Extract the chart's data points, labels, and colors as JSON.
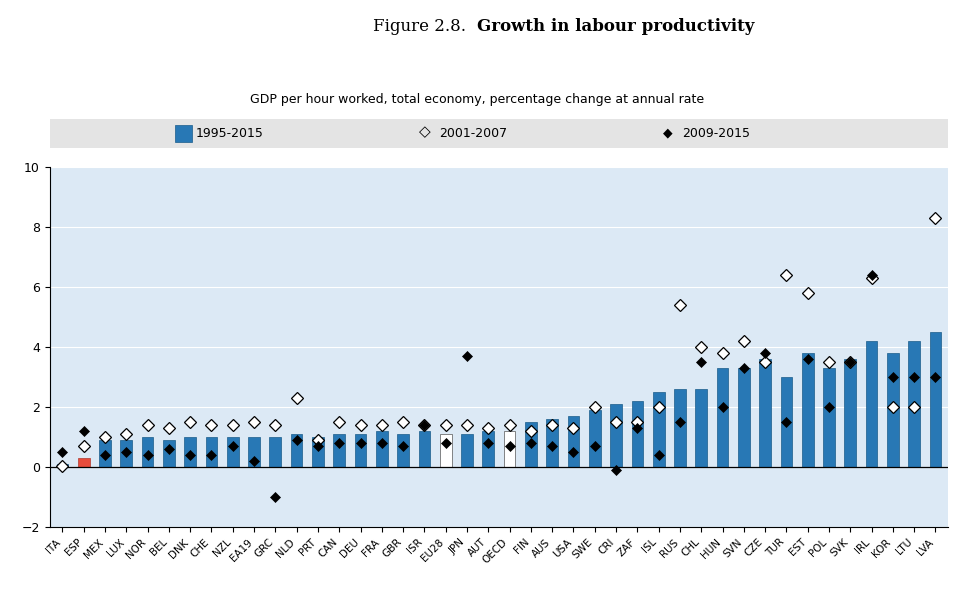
{
  "categories": [
    "ITA",
    "ESP",
    "MEX",
    "LUX",
    "NOR",
    "BEL",
    "DNK",
    "CHE",
    "NZL",
    "EA19",
    "GRC",
    "NLD",
    "PRT",
    "CAN",
    "DEU",
    "FRA",
    "GBR",
    "ISR",
    "EU28",
    "JPN",
    "AUT",
    "OECD",
    "FIN",
    "AUS",
    "USA",
    "SWE",
    "CRI",
    "ZAF",
    "ISL",
    "RUS",
    "CHL",
    "HUN",
    "SVN",
    "CZE",
    "TUR",
    "EST",
    "POL",
    "SVK",
    "IRL",
    "KOR",
    "LTU",
    "LVA"
  ],
  "bars_1995_2015": [
    0.1,
    0.3,
    0.9,
    0.9,
    1.0,
    0.9,
    1.0,
    1.0,
    1.0,
    1.0,
    1.0,
    1.1,
    1.0,
    1.1,
    1.1,
    1.2,
    1.1,
    1.2,
    1.1,
    1.1,
    1.2,
    1.2,
    1.5,
    1.6,
    1.7,
    1.9,
    2.1,
    2.2,
    2.5,
    2.6,
    2.6,
    3.3,
    3.3,
    3.6,
    3.0,
    3.8,
    3.3,
    3.6,
    4.2,
    3.8,
    4.2,
    4.5
  ],
  "diamonds_2001_2007": [
    0.05,
    0.7,
    1.0,
    1.1,
    1.4,
    1.3,
    1.5,
    1.4,
    1.4,
    1.5,
    1.4,
    2.3,
    0.9,
    1.5,
    1.4,
    1.4,
    1.5,
    1.4,
    1.4,
    1.4,
    1.3,
    1.4,
    1.2,
    1.4,
    1.3,
    2.0,
    1.5,
    1.5,
    2.0,
    5.4,
    4.0,
    3.8,
    4.2,
    3.5,
    6.4,
    5.8,
    3.5,
    3.5,
    6.3,
    2.0,
    2.0,
    8.3
  ],
  "diamonds_2009_2015": [
    0.5,
    1.2,
    0.4,
    0.5,
    0.4,
    0.6,
    0.4,
    0.4,
    0.7,
    0.2,
    -1.0,
    0.9,
    0.7,
    0.8,
    0.8,
    0.8,
    0.7,
    1.4,
    0.8,
    3.7,
    0.8,
    0.7,
    0.8,
    0.7,
    0.5,
    0.7,
    -0.1,
    1.3,
    0.4,
    1.5,
    3.5,
    2.0,
    3.3,
    3.8,
    1.5,
    3.6,
    2.0,
    3.5,
    6.4,
    3.0,
    3.0,
    3.0
  ],
  "bar_color_blue": "#2878b5",
  "bar_color_red": "#e74c3c",
  "bar_color_white": "#ffffff",
  "bg_color": "#dce9f5",
  "legend_bg": "#e4e4e4",
  "title_prefix": "Figure 2.8.  ",
  "title_bold": "Growth in labour productivity",
  "subtitle": "GDP per hour worked, total economy, percentage change at annual rate",
  "legend1": "1995-2015",
  "legend2": "2001-2007",
  "legend3": "2009-2015",
  "ylim": [
    -2,
    10
  ],
  "yticks": [
    -2,
    0,
    2,
    4,
    6,
    8,
    10
  ]
}
